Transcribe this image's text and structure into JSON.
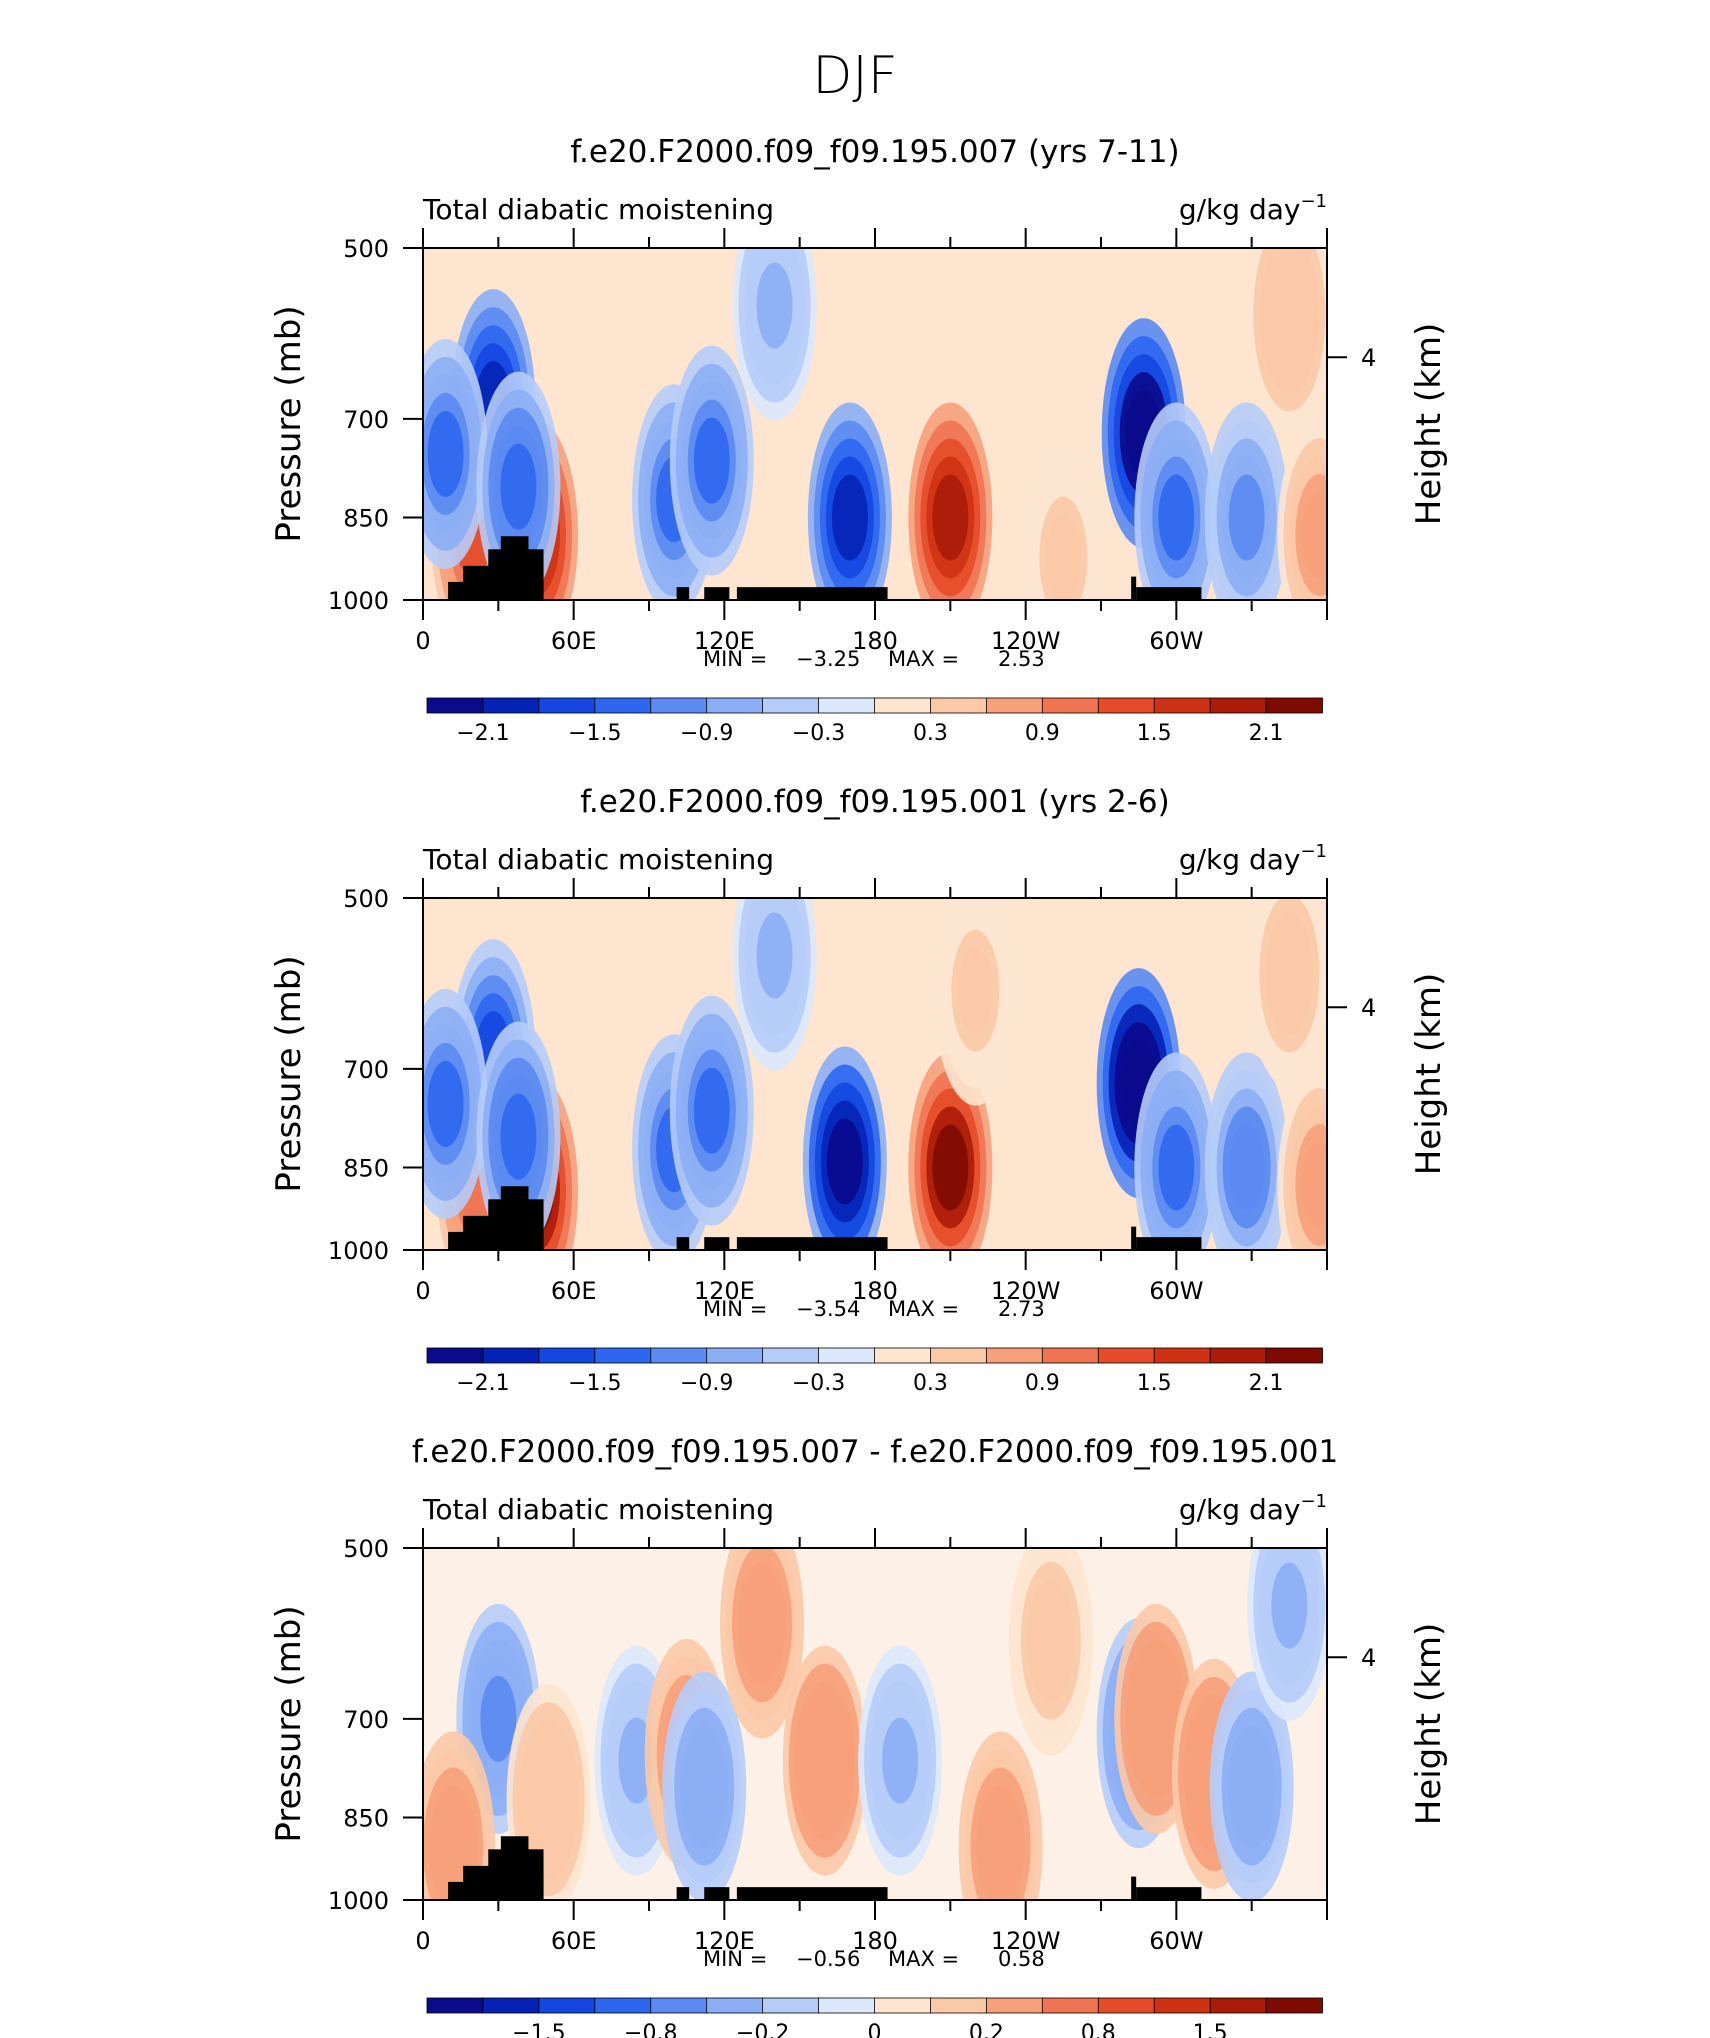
{
  "figure_title": "DJF",
  "colors": {
    "panel_scale": [
      "#0a0a8c",
      "#0522b6",
      "#1347e0",
      "#2e67ef",
      "#5a8af2",
      "#8caef5",
      "#b6ccf8",
      "#dce8fc",
      "#fde5d0",
      "#fbc9a7",
      "#f6a07a",
      "#f07452",
      "#e64b29",
      "#cf3213",
      "#aa1b08",
      "#7e0a02"
    ],
    "land": "#000000"
  },
  "chart_data": [
    {
      "type": "heatmap",
      "title": "f.e20.F2000.f09_f09.195.007 (yrs 7-11)",
      "variable_label": "Total diabatic moistening",
      "units": "g/kg day",
      "units_exponent": "−1",
      "ylabel": "Pressure (mb)",
      "ylabel_right": "Height (km)",
      "yticks": [
        "500",
        "700",
        "850",
        "1000"
      ],
      "ytick_values": [
        500,
        700,
        850,
        1000
      ],
      "ylim": [
        1000,
        500
      ],
      "yscale": "log",
      "yticks_right": [
        "4"
      ],
      "ytick_right_values": [
        620
      ],
      "xticks": [
        "0",
        "60E",
        "120E",
        "180",
        "120W",
        "60W"
      ],
      "xtick_values": [
        0,
        60,
        120,
        180,
        240,
        300
      ],
      "xlim": [
        0,
        360
      ],
      "stats": {
        "min_label": "MIN =",
        "min": "−3.25",
        "max_label": "MAX =",
        "max": "2.53"
      },
      "colorbar_labels": [
        "−2.1",
        "−1.5",
        "−0.9",
        "−0.3",
        "0.3",
        "0.9",
        "1.5",
        "2.1"
      ],
      "levels": [
        -2.1,
        -1.8,
        -1.5,
        -1.2,
        -0.9,
        -0.6,
        -0.3,
        0,
        0.3,
        0.6,
        0.9,
        1.2,
        1.5,
        1.8,
        2.1
      ],
      "features": [
        {
          "lon": 20,
          "p": 880,
          "value": 1.3
        },
        {
          "lon": 28,
          "p": 680,
          "value": -1.8
        },
        {
          "lon": 9,
          "p": 750,
          "value": -1.2
        },
        {
          "lon": 45,
          "p": 880,
          "value": 2.0
        },
        {
          "lon": 38,
          "p": 800,
          "value": -1.4
        },
        {
          "lon": 100,
          "p": 820,
          "value": -1.3
        },
        {
          "lon": 115,
          "p": 760,
          "value": -1.2
        },
        {
          "lon": 170,
          "p": 850,
          "value": -2.0
        },
        {
          "lon": 210,
          "p": 850,
          "value": 2.0
        },
        {
          "lon": 287,
          "p": 720,
          "value": -2.6
        },
        {
          "lon": 300,
          "p": 850,
          "value": -1.3
        },
        {
          "lon": 328,
          "p": 850,
          "value": -1.0
        },
        {
          "lon": 345,
          "p": 570,
          "value": 0.6
        },
        {
          "lon": 357,
          "p": 880,
          "value": 0.8
        },
        {
          "lon": 140,
          "p": 560,
          "value": -0.6
        },
        {
          "lon": 255,
          "p": 920,
          "value": 0.4
        }
      ]
    },
    {
      "type": "heatmap",
      "title": "f.e20.F2000.f09_f09.195.001 (yrs 2-6)",
      "variable_label": "Total diabatic moistening",
      "units": "g/kg day",
      "units_exponent": "−1",
      "ylabel": "Pressure (mb)",
      "ylabel_right": "Height (km)",
      "yticks": [
        "500",
        "700",
        "850",
        "1000"
      ],
      "ytick_values": [
        500,
        700,
        850,
        1000
      ],
      "ylim": [
        1000,
        500
      ],
      "yscale": "log",
      "yticks_right": [
        "4"
      ],
      "ytick_right_values": [
        620
      ],
      "xticks": [
        "0",
        "60E",
        "120E",
        "180",
        "120W",
        "60W"
      ],
      "xtick_values": [
        0,
        60,
        120,
        180,
        240,
        300
      ],
      "xlim": [
        0,
        360
      ],
      "stats": {
        "min_label": "MIN =",
        "min": "−3.54",
        "max_label": "MAX =",
        "max": "2.73"
      },
      "colorbar_labels": [
        "−2.1",
        "−1.5",
        "−0.9",
        "−0.3",
        "0.3",
        "0.9",
        "1.5",
        "2.1"
      ],
      "levels": [
        -2.1,
        -1.8,
        -1.5,
        -1.2,
        -0.9,
        -0.6,
        -0.3,
        0,
        0.3,
        0.6,
        0.9,
        1.2,
        1.5,
        1.8,
        2.1
      ],
      "features": [
        {
          "lon": 22,
          "p": 870,
          "value": 1.2
        },
        {
          "lon": 28,
          "p": 680,
          "value": -1.5
        },
        {
          "lon": 9,
          "p": 750,
          "value": -1.2
        },
        {
          "lon": 45,
          "p": 890,
          "value": 2.2
        },
        {
          "lon": 38,
          "p": 800,
          "value": -1.4
        },
        {
          "lon": 100,
          "p": 820,
          "value": -1.3
        },
        {
          "lon": 115,
          "p": 760,
          "value": -1.2
        },
        {
          "lon": 168,
          "p": 840,
          "value": -2.4
        },
        {
          "lon": 210,
          "p": 850,
          "value": 2.2
        },
        {
          "lon": 285,
          "p": 720,
          "value": -2.8
        },
        {
          "lon": 300,
          "p": 850,
          "value": -1.3
        },
        {
          "lon": 328,
          "p": 850,
          "value": -1.1
        },
        {
          "lon": 345,
          "p": 580,
          "value": 0.5
        },
        {
          "lon": 357,
          "p": 880,
          "value": 0.8
        },
        {
          "lon": 220,
          "p": 600,
          "value": 0.4
        },
        {
          "lon": 140,
          "p": 560,
          "value": -0.7
        }
      ]
    },
    {
      "type": "heatmap",
      "title": "f.e20.F2000.f09_f09.195.007 - f.e20.F2000.f09_f09.195.001",
      "variable_label": "Total diabatic moistening",
      "units": "g/kg day",
      "units_exponent": "−1",
      "ylabel": "Pressure (mb)",
      "ylabel_right": "Height (km)",
      "yticks": [
        "500",
        "700",
        "850",
        "1000"
      ],
      "ytick_values": [
        500,
        700,
        850,
        1000
      ],
      "ylim": [
        1000,
        500
      ],
      "yscale": "log",
      "yticks_right": [
        "4"
      ],
      "ytick_right_values": [
        620
      ],
      "xticks": [
        "0",
        "60E",
        "120E",
        "180",
        "120W",
        "60W"
      ],
      "xtick_values": [
        0,
        60,
        120,
        180,
        240,
        300
      ],
      "xlim": [
        0,
        360
      ],
      "stats": {
        "min_label": "MIN =",
        "min": "−0.56",
        "max_label": "MAX =",
        "max": "0.58"
      },
      "colorbar_labels": [
        "−1.5",
        "−0.8",
        "−0.2",
        "0",
        "0.2",
        "0.8",
        "1.5"
      ],
      "levels": [
        -2.0,
        -1.5,
        -1.2,
        -1.0,
        -0.8,
        -0.5,
        -0.2,
        -0.1,
        0,
        0.1,
        0.2,
        0.5,
        0.8,
        1.0,
        1.2,
        1.5,
        2.0
      ],
      "features": [
        {
          "lon": 30,
          "p": 700,
          "value": -0.5
        },
        {
          "lon": 12,
          "p": 900,
          "value": 0.3
        },
        {
          "lon": 50,
          "p": 820,
          "value": 0.2
        },
        {
          "lon": 85,
          "p": 760,
          "value": -0.2
        },
        {
          "lon": 105,
          "p": 750,
          "value": 0.3
        },
        {
          "lon": 112,
          "p": 800,
          "value": -0.3
        },
        {
          "lon": 135,
          "p": 580,
          "value": 0.3
        },
        {
          "lon": 160,
          "p": 760,
          "value": 0.5
        },
        {
          "lon": 190,
          "p": 760,
          "value": -0.2
        },
        {
          "lon": 230,
          "p": 900,
          "value": 0.3
        },
        {
          "lon": 285,
          "p": 720,
          "value": -0.4
        },
        {
          "lon": 292,
          "p": 700,
          "value": 0.4
        },
        {
          "lon": 315,
          "p": 780,
          "value": 0.4
        },
        {
          "lon": 330,
          "p": 800,
          "value": -0.3
        },
        {
          "lon": 345,
          "p": 560,
          "value": -0.2
        },
        {
          "lon": 250,
          "p": 600,
          "value": 0.15
        }
      ]
    }
  ]
}
